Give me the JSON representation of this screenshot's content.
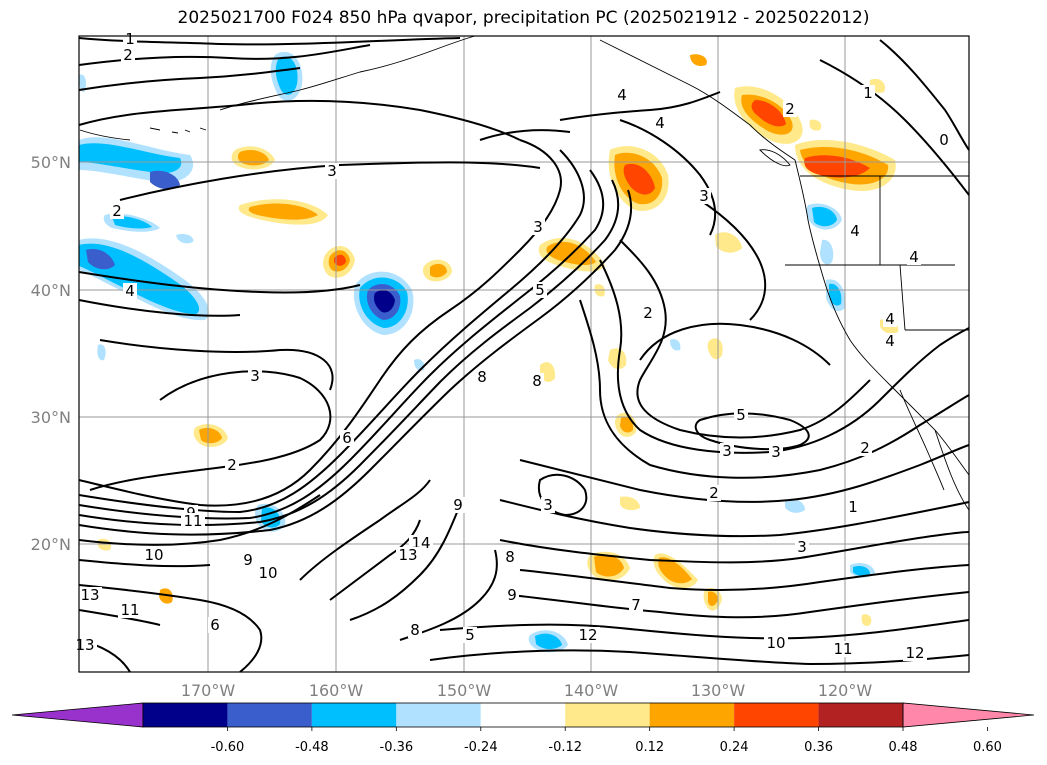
{
  "title": "2025021700 F024 850 hPa qvapor, precipitation PC (2025021912 - 2025022012)",
  "map": {
    "lat_labels": [
      "50°N",
      "40°N",
      "30°N",
      "20°N"
    ],
    "lon_labels": [
      "170°W",
      "160°W",
      "150°W",
      "140°W",
      "130°W",
      "120°W"
    ],
    "grid": true,
    "contour_field": "850 hPa qvapor",
    "shaded_field": "precipitation PC"
  },
  "colorbar": {
    "extend": "both",
    "colors": [
      "#9932CC",
      "#00008B",
      "#3A5FCD",
      "#00BFFF",
      "#B0E2FF",
      "#FFFFFF",
      "#FFE98A",
      "#FFA500",
      "#FF4500",
      "#B22222",
      "#FF88AA"
    ],
    "tick_labels": [
      "-0.60",
      "-0.48",
      "-0.36",
      "-0.24",
      "-0.12",
      "0.12",
      "0.24",
      "0.36",
      "0.48",
      "0.60"
    ]
  },
  "contour_labels": [
    "1",
    "2",
    "3",
    "4",
    "5",
    "6",
    "7",
    "8",
    "9",
    "10",
    "11",
    "12",
    "13",
    "14",
    "0"
  ]
}
